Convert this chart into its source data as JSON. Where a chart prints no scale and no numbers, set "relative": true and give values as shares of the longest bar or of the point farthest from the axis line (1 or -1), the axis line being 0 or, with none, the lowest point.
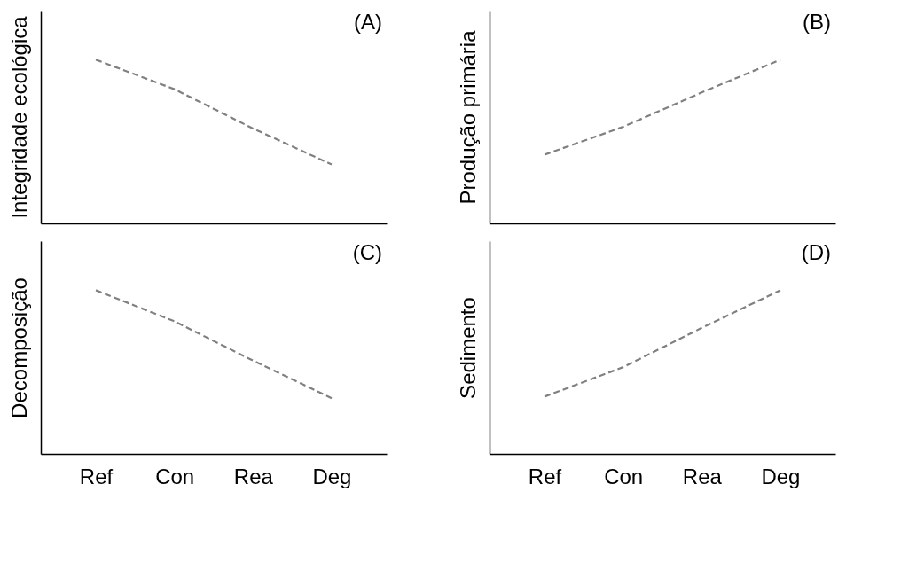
{
  "chart_data": [
    {
      "type": "line",
      "relative": true,
      "ylabel": "Integridade ecológica",
      "categories": [
        null,
        null,
        null,
        null
      ],
      "tick_labels": false,
      "annotations": [
        "(A)"
      ],
      "line_style": "dashed",
      "marker": "none",
      "grid": false,
      "series": [
        {
          "color": "#808080",
          "values": [
            1,
            0.82,
            0.58,
            0.36
          ]
        }
      ]
    },
    {
      "type": "line",
      "relative": true,
      "ylabel": "Produção primária",
      "categories": [
        null,
        null,
        null,
        null
      ],
      "tick_labels": false,
      "annotations": [
        "(B)"
      ],
      "line_style": "dashed",
      "marker": "none",
      "grid": false,
      "series": [
        {
          "color": "#808080",
          "values": [
            0.42,
            0.59,
            0.8,
            1
          ]
        }
      ]
    },
    {
      "type": "line",
      "relative": true,
      "ylabel": "Decomposição",
      "categories": [
        "Ref",
        "Con",
        "Rea",
        "Deg"
      ],
      "tick_labels": "x",
      "annotations": [
        "(C)"
      ],
      "line_style": "dashed",
      "marker": "none",
      "grid": false,
      "series": [
        {
          "color": "#808080",
          "values": [
            1,
            0.81,
            0.57,
            0.34
          ]
        }
      ]
    },
    {
      "type": "line",
      "relative": true,
      "ylabel": "Sedimento",
      "categories": [
        "Ref",
        "Con",
        "Rea",
        "Deg"
      ],
      "tick_labels": "x",
      "annotations": [
        "(D)"
      ],
      "line_style": "dashed",
      "marker": "none",
      "grid": false,
      "series": [
        {
          "color": "#808080",
          "values": [
            0.35,
            0.53,
            0.77,
            1
          ]
        }
      ]
    }
  ]
}
